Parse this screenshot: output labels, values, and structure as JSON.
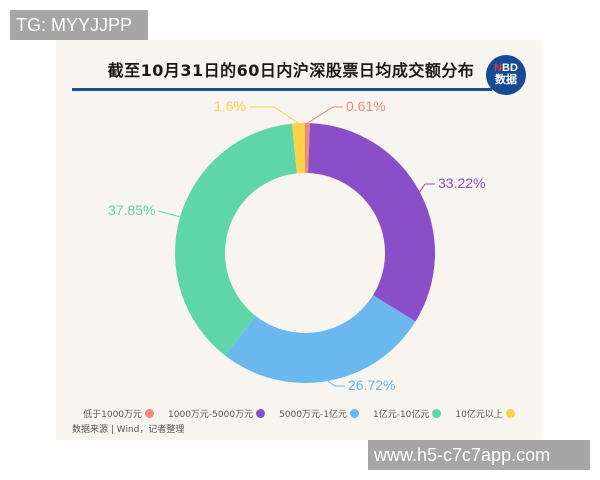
{
  "watermarks": {
    "top_left": "TG: MYYJJPP",
    "bottom_right": "www.h5-c7c7app.com"
  },
  "logo": {
    "line1_accent": "N",
    "line1_rest": "BD",
    "line2": "数据"
  },
  "chart_data": {
    "type": "pie",
    "subtype": "donut",
    "title": "截至10月31日的60日内沪深股票日均成交额分布",
    "categories": [
      "低于1000万元",
      "1000万元-5000万元",
      "5000万元-1亿元",
      "1亿元-10亿元",
      "10亿元以上"
    ],
    "values": [
      0.61,
      33.22,
      26.72,
      37.85,
      1.6
    ],
    "labels": [
      "0.61%",
      "33.22%",
      "26.72%",
      "37.85%",
      "1.6%"
    ],
    "colors": [
      "#f08a7a",
      "#8a4fc8",
      "#6bb8ef",
      "#5fd6a8",
      "#fbd348"
    ],
    "legend_position": "bottom",
    "source": "数据来源 | Wind，记者整理"
  }
}
